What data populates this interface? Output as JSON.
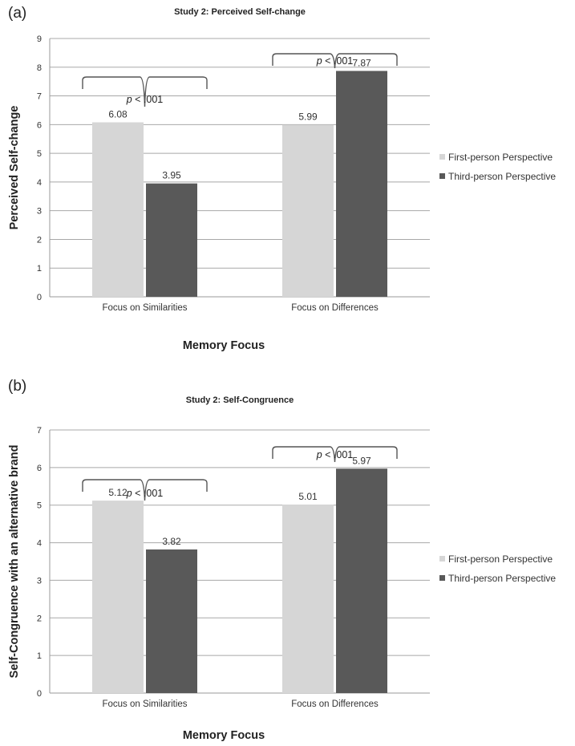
{
  "chart_data": [
    {
      "panel": "(a)",
      "type": "bar",
      "title": "Study 2: Perceived Self-change",
      "xlabel": "Memory Focus",
      "ylabel": "Perceived Self-change",
      "ylim": [
        0,
        9
      ],
      "yticks": [
        0,
        1,
        2,
        3,
        4,
        5,
        6,
        7,
        8,
        9
      ],
      "categories": [
        "Focus on Similarities",
        "Focus on Differences"
      ],
      "series": [
        {
          "name": "First-person Perspective",
          "values": [
            6.08,
            5.99
          ],
          "labels": [
            "6.08",
            "5.99"
          ],
          "color": "#d6d6d6"
        },
        {
          "name": "Third-person Perspective",
          "values": [
            3.95,
            7.87
          ],
          "labels": [
            "3.95",
            "7.87"
          ],
          "color": "#595959"
        }
      ],
      "annotations": [
        {
          "category": 0,
          "p": "p",
          "text": " < .001"
        },
        {
          "category": 1,
          "p": "p",
          "text": " < .001"
        }
      ],
      "grid": true,
      "legend_position": "right"
    },
    {
      "panel": "(b)",
      "type": "bar",
      "title": "Study 2: Self-Congruence",
      "xlabel": "Memory Focus",
      "ylabel": "Self-Congruence with an alternative brand",
      "ylim": [
        0,
        7
      ],
      "yticks": [
        0,
        1,
        2,
        3,
        4,
        5,
        6,
        7
      ],
      "categories": [
        "Focus on Similarities",
        "Focus on Differences"
      ],
      "series": [
        {
          "name": "First-person Perspective",
          "values": [
            5.12,
            5.01
          ],
          "labels": [
            "5.12",
            "5.01"
          ],
          "color": "#d6d6d6"
        },
        {
          "name": "Third-person Perspective",
          "values": [
            3.82,
            5.97
          ],
          "labels": [
            "3.82",
            "5.97"
          ],
          "color": "#595959"
        }
      ],
      "annotations": [
        {
          "category": 0,
          "p": "p",
          "text": " < .001"
        },
        {
          "category": 1,
          "p": "p",
          "text": " < .001"
        }
      ],
      "grid": true,
      "legend_position": "right"
    }
  ]
}
